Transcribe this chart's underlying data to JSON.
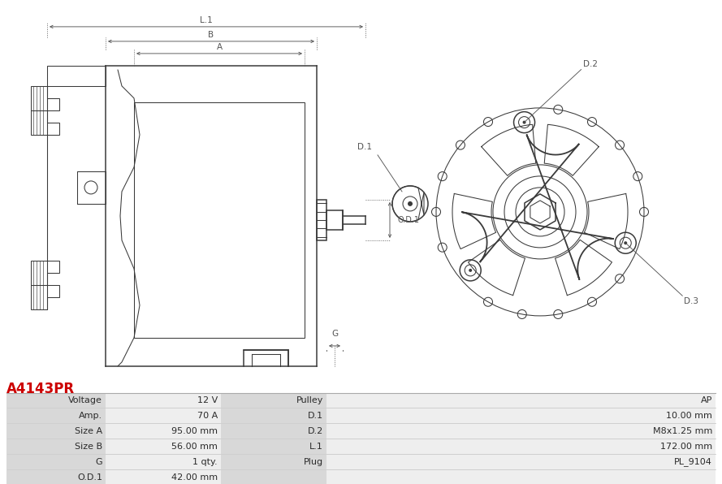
{
  "title": "A4143PR",
  "title_color": "#cc0000",
  "table_headers_left": [
    "Voltage",
    "Amp.",
    "Size A",
    "Size B",
    "G",
    "O.D.1"
  ],
  "table_values_left": [
    "12 V",
    "70 A",
    "95.00 mm",
    "56.00 mm",
    "1 qty.",
    "42.00 mm"
  ],
  "table_headers_right": [
    "Pulley",
    "D.1",
    "D.2",
    "L.1",
    "Plug",
    ""
  ],
  "table_values_right": [
    "AP",
    "10.00 mm",
    "M8x1.25 mm",
    "172.00 mm",
    "PL_9104",
    ""
  ],
  "bg_color": "#ffffff",
  "line_color": "#3a3a3a",
  "dim_color": "#555555",
  "table_header_bg": "#d8d8d8",
  "table_value_bg": "#eeeeee",
  "table_border_color": "#ffffff"
}
